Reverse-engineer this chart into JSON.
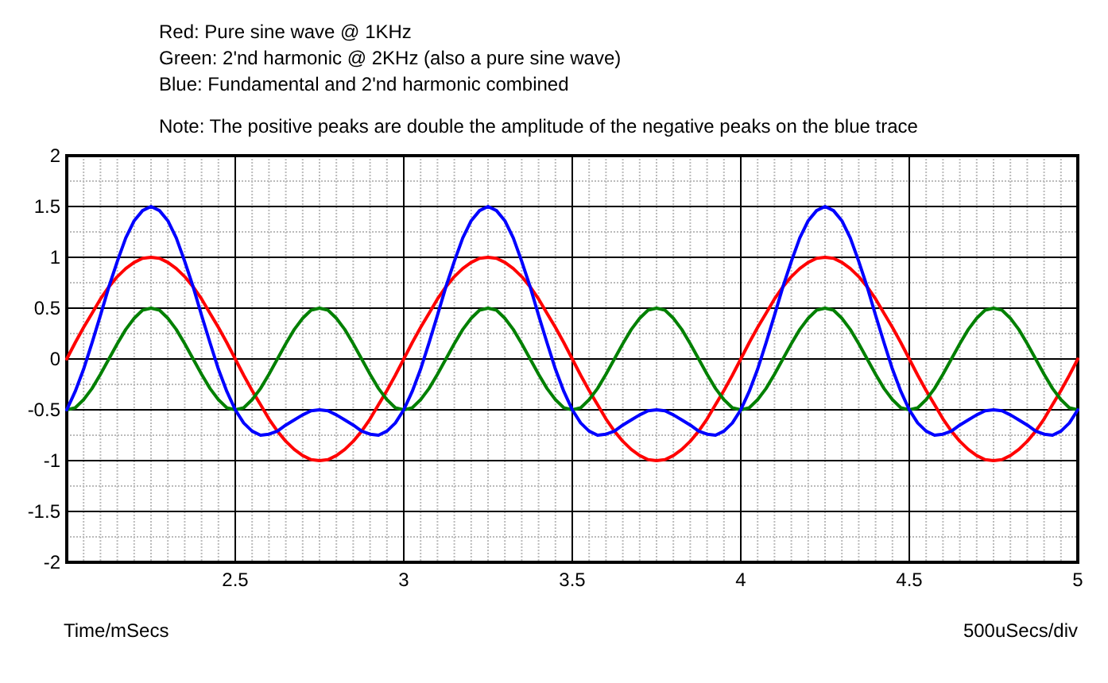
{
  "chart_data": {
    "type": "line",
    "xlabel": "Time/mSecs",
    "annotations": [
      "Red: Pure sine wave @ 1KHz",
      "Green: 2'nd harmonic @ 2KHz (also a pure sine wave)",
      "Blue: Fundamental and 2'nd harmonic combined",
      "Note: The positive peaks are double the amplitude of the negative peaks on the blue trace",
      "500uSecs/div"
    ],
    "x": [
      2,
      2.025,
      2.05,
      2.075,
      2.1,
      2.125,
      2.15,
      2.175,
      2.2,
      2.225,
      2.25,
      2.275,
      2.3,
      2.325,
      2.35,
      2.375,
      2.4,
      2.425,
      2.45,
      2.475,
      2.5,
      2.525,
      2.55,
      2.575,
      2.6,
      2.625,
      2.65,
      2.675,
      2.7,
      2.725,
      2.75,
      2.775,
      2.8,
      2.825,
      2.85,
      2.875,
      2.9,
      2.925,
      2.95,
      2.975,
      3,
      3.025,
      3.05,
      3.075,
      3.1,
      3.125,
      3.15,
      3.175,
      3.2,
      3.225,
      3.25,
      3.275,
      3.3,
      3.325,
      3.35,
      3.375,
      3.4,
      3.425,
      3.45,
      3.475,
      3.5,
      3.525,
      3.55,
      3.575,
      3.6,
      3.625,
      3.65,
      3.675,
      3.7,
      3.725,
      3.75,
      3.775,
      3.8,
      3.825,
      3.85,
      3.875,
      3.9,
      3.925,
      3.95,
      3.975,
      4,
      4.025,
      4.05,
      4.075,
      4.1,
      4.125,
      4.15,
      4.175,
      4.2,
      4.225,
      4.25,
      4.275,
      4.3,
      4.325,
      4.35,
      4.375,
      4.4,
      4.425,
      4.45,
      4.475,
      4.5,
      4.525,
      4.55,
      4.575,
      4.6,
      4.625,
      4.65,
      4.675,
      4.7,
      4.725,
      4.75,
      4.775,
      4.8,
      4.825,
      4.85,
      4.875,
      4.9,
      4.925,
      4.95,
      4.975,
      5
    ],
    "series": [
      {
        "color": "#ff0000",
        "values": [
          0,
          0.16,
          0.31,
          0.45,
          0.59,
          0.71,
          0.81,
          0.89,
          0.95,
          0.99,
          1,
          0.99,
          0.95,
          0.89,
          0.81,
          0.71,
          0.59,
          0.45,
          0.31,
          0.16,
          0,
          -0.16,
          -0.31,
          -0.45,
          -0.59,
          -0.71,
          -0.81,
          -0.89,
          -0.95,
          -0.99,
          -1,
          -0.99,
          -0.95,
          -0.89,
          -0.81,
          -0.71,
          -0.59,
          -0.45,
          -0.31,
          -0.16,
          0,
          0.16,
          0.31,
          0.45,
          0.59,
          0.71,
          0.81,
          0.89,
          0.95,
          0.99,
          1,
          0.99,
          0.95,
          0.89,
          0.81,
          0.71,
          0.59,
          0.45,
          0.31,
          0.16,
          0,
          -0.16,
          -0.31,
          -0.45,
          -0.59,
          -0.71,
          -0.81,
          -0.89,
          -0.95,
          -0.99,
          -1,
          -0.99,
          -0.95,
          -0.89,
          -0.81,
          -0.71,
          -0.59,
          -0.45,
          -0.31,
          -0.16,
          0,
          0.16,
          0.31,
          0.45,
          0.59,
          0.71,
          0.81,
          0.89,
          0.95,
          0.99,
          1,
          0.99,
          0.95,
          0.89,
          0.81,
          0.71,
          0.59,
          0.45,
          0.31,
          0.16,
          0,
          -0.16,
          -0.31,
          -0.45,
          -0.59,
          -0.71,
          -0.81,
          -0.89,
          -0.95,
          -0.99,
          -1,
          -0.99,
          -0.95,
          -0.89,
          -0.81,
          -0.71,
          -0.59,
          -0.45,
          -0.31,
          -0.16,
          0
        ]
      },
      {
        "color": "#008000",
        "values": [
          -0.5,
          -0.48,
          -0.4,
          -0.29,
          -0.15,
          0,
          0.15,
          0.29,
          0.4,
          0.48,
          0.5,
          0.48,
          0.4,
          0.29,
          0.15,
          0,
          -0.15,
          -0.29,
          -0.4,
          -0.48,
          -0.5,
          -0.48,
          -0.4,
          -0.29,
          -0.15,
          0,
          0.15,
          0.29,
          0.4,
          0.48,
          0.5,
          0.48,
          0.4,
          0.29,
          0.15,
          0,
          -0.15,
          -0.29,
          -0.4,
          -0.48,
          -0.5,
          -0.48,
          -0.4,
          -0.29,
          -0.15,
          0,
          0.15,
          0.29,
          0.4,
          0.48,
          0.5,
          0.48,
          0.4,
          0.29,
          0.15,
          0,
          -0.15,
          -0.29,
          -0.4,
          -0.48,
          -0.5,
          -0.48,
          -0.4,
          -0.29,
          -0.15,
          0,
          0.15,
          0.29,
          0.4,
          0.48,
          0.5,
          0.48,
          0.4,
          0.29,
          0.15,
          0,
          -0.15,
          -0.29,
          -0.4,
          -0.48,
          -0.5,
          -0.48,
          -0.4,
          -0.29,
          -0.15,
          0,
          0.15,
          0.29,
          0.4,
          0.48,
          0.5,
          0.48,
          0.4,
          0.29,
          0.15,
          0,
          -0.15,
          -0.29,
          -0.4,
          -0.48,
          -0.5,
          -0.48,
          -0.4,
          -0.29,
          -0.15,
          0,
          0.15,
          0.29,
          0.4,
          0.48,
          0.5,
          0.48,
          0.4,
          0.29,
          0.15,
          0,
          -0.15,
          -0.29,
          -0.4,
          -0.48,
          -0.5
        ]
      },
      {
        "color": "#0000ff",
        "values": [
          -0.5,
          -0.32,
          -0.1,
          0.16,
          0.43,
          0.71,
          0.96,
          1.19,
          1.36,
          1.46,
          1.5,
          1.46,
          1.36,
          1.19,
          0.96,
          0.71,
          0.43,
          0.16,
          -0.1,
          -0.32,
          -0.5,
          -0.63,
          -0.71,
          -0.75,
          -0.74,
          -0.71,
          -0.65,
          -0.6,
          -0.55,
          -0.51,
          -0.5,
          -0.51,
          -0.55,
          -0.6,
          -0.65,
          -0.71,
          -0.74,
          -0.75,
          -0.71,
          -0.63,
          -0.5,
          -0.32,
          -0.1,
          0.16,
          0.43,
          0.71,
          0.96,
          1.19,
          1.36,
          1.46,
          1.5,
          1.46,
          1.36,
          1.19,
          0.96,
          0.71,
          0.43,
          0.16,
          -0.1,
          -0.32,
          -0.5,
          -0.63,
          -0.71,
          -0.75,
          -0.74,
          -0.71,
          -0.65,
          -0.6,
          -0.55,
          -0.51,
          -0.5,
          -0.51,
          -0.55,
          -0.6,
          -0.65,
          -0.71,
          -0.74,
          -0.75,
          -0.71,
          -0.63,
          -0.5,
          -0.32,
          -0.1,
          0.16,
          0.43,
          0.71,
          0.96,
          1.19,
          1.36,
          1.46,
          1.5,
          1.46,
          1.36,
          1.19,
          0.96,
          0.71,
          0.43,
          0.16,
          -0.1,
          -0.32,
          -0.5,
          -0.63,
          -0.71,
          -0.75,
          -0.74,
          -0.71,
          -0.65,
          -0.6,
          -0.55,
          -0.51,
          -0.5,
          -0.51,
          -0.55,
          -0.6,
          -0.65,
          -0.71,
          -0.74,
          -0.75,
          -0.71,
          -0.63,
          -0.5
        ]
      }
    ],
    "xlim": [
      2,
      5
    ],
    "xticks": [
      {
        "value": 2,
        "label": null
      },
      2.5,
      3,
      3.5,
      4,
      4.5,
      5
    ],
    "ylim": [
      -2,
      2
    ],
    "yticks": [
      -2,
      -1.5,
      -1,
      -0.5,
      0,
      0.5,
      1,
      1.5,
      2
    ],
    "grid": true,
    "marker": "none",
    "line_style": "solid"
  }
}
